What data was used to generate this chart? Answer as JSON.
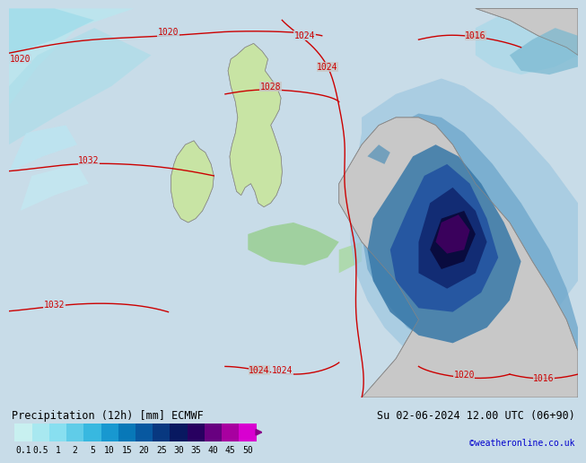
{
  "title_left": "Precipitation (12h) [mm] ECMWF",
  "title_right": "Su 02-06-2024 12.00 UTC (06+90)",
  "credit": "©weatheronline.co.uk",
  "colorbar_values": [
    "0.1",
    "0.5",
    "1",
    "2",
    "5",
    "10",
    "15",
    "20",
    "25",
    "30",
    "35",
    "40",
    "45",
    "50"
  ],
  "colorbar_colors": [
    "#c8f0f0",
    "#a8e8f0",
    "#88dff0",
    "#60cce8",
    "#38b8e0",
    "#1898d0",
    "#0878b8",
    "#0858a0",
    "#083880",
    "#081860",
    "#280060",
    "#680080",
    "#a800a0",
    "#d800d0"
  ],
  "map_bg_light": "#d8eef4",
  "map_bg_gray": "#c8c8cc",
  "land_color": "#c8c8c8",
  "ocean_color": "#c8dce8",
  "title_fontsize": 8.5,
  "credit_color": "#0000cc",
  "tick_fontsize": 7,
  "isobar_color": "#cc0000",
  "isobar_fontsize": 7,
  "fig_bg": "#c8dce8"
}
